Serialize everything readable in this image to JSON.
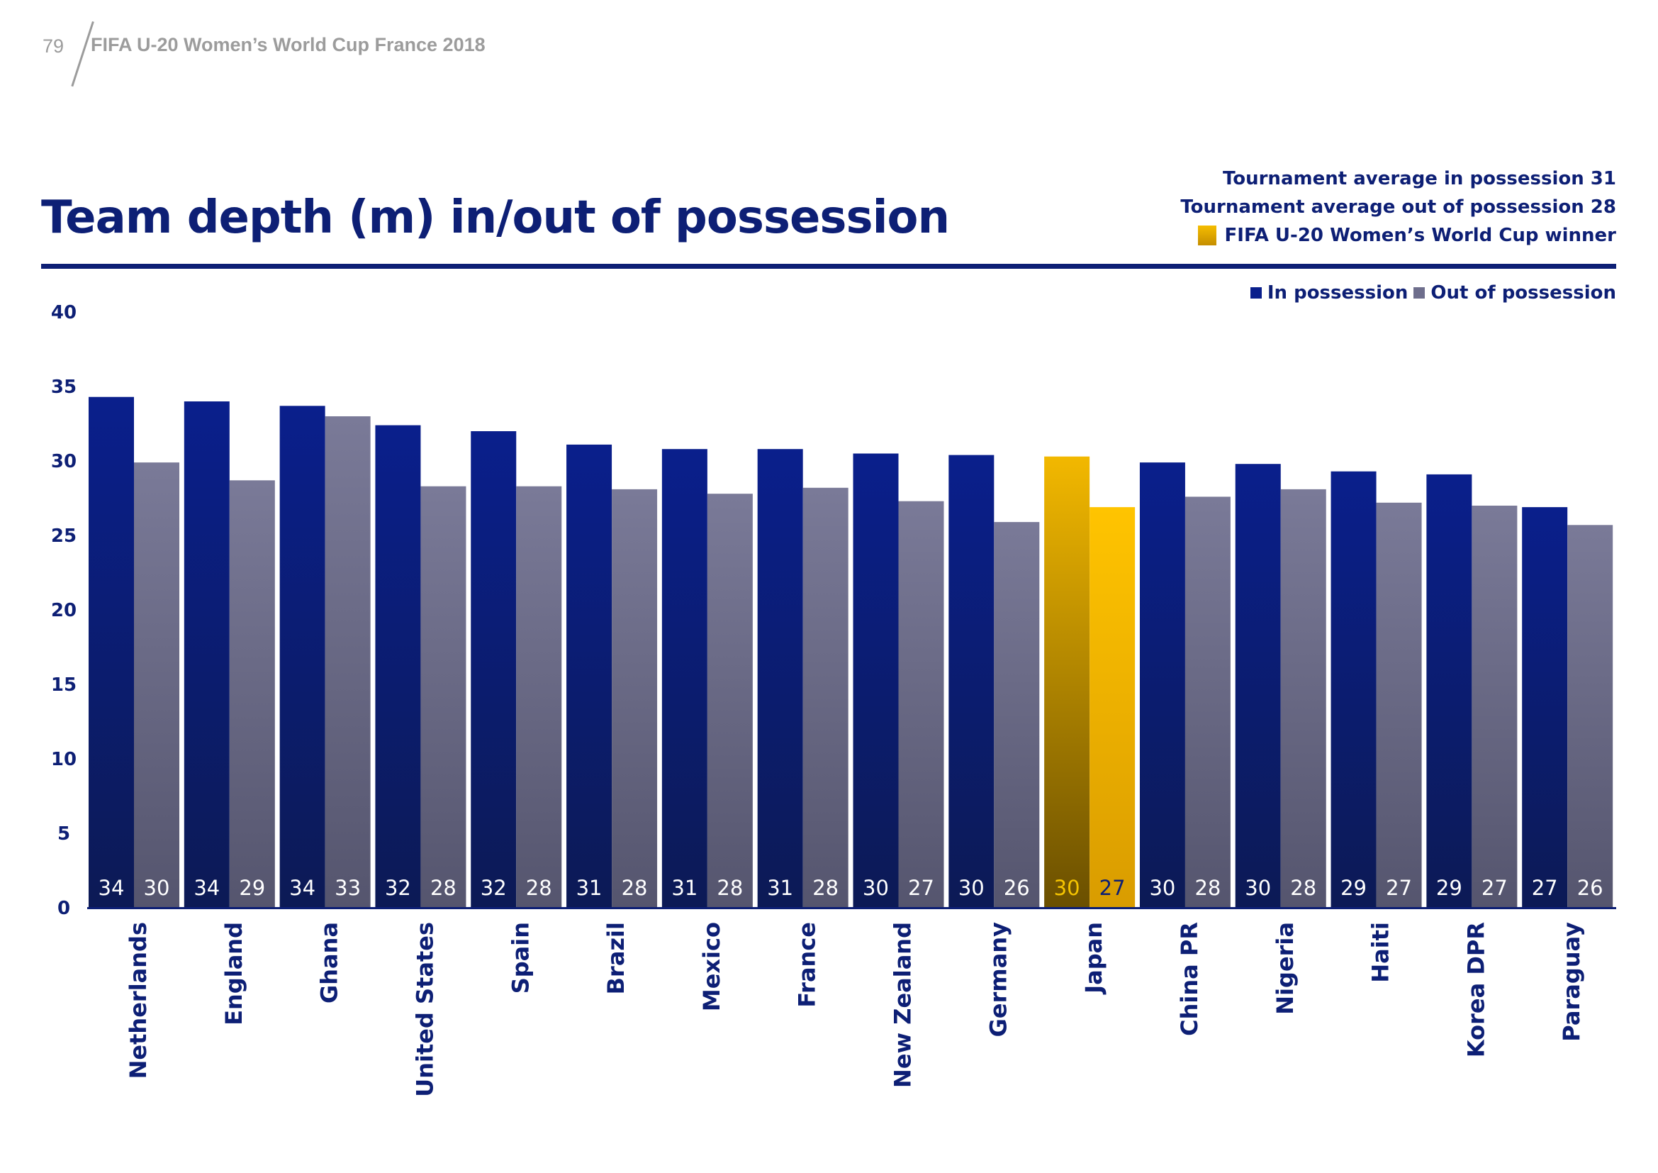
{
  "header": {
    "page_number": "79",
    "publication": "FIFA U-20 Women’s World Cup France 2018"
  },
  "title": "Team depth (m) in/out of possession",
  "averages": {
    "in_possession": "Tournament average in possession 31",
    "out_of_possession": "Tournament average out of possession 28",
    "winner_label": "FIFA U-20 Women’s World Cup winner"
  },
  "legend": {
    "in_label": "In possession",
    "out_label": "Out of possession"
  },
  "colors": {
    "title": "#0d1f75",
    "in_top": "#0a1f8c",
    "in_bottom": "#0c1a55",
    "out_top": "#7a7a98",
    "out_bottom": "#55556e",
    "winner_top": "#f2b800",
    "winner_bottom": "#6a4f00",
    "winner_out_top": "#ffc400",
    "winner_out_bottom": "#d99c00"
  },
  "chart_data": {
    "type": "bar",
    "title": "Team depth (m) in/out of possession",
    "xlabel": "",
    "ylabel": "",
    "ylim": [
      0,
      40
    ],
    "yticks": [
      0,
      5,
      10,
      15,
      20,
      25,
      30,
      35,
      40
    ],
    "categories": [
      "Netherlands",
      "England",
      "Ghana",
      "United States",
      "Spain",
      "Brazil",
      "Mexico",
      "France",
      "New Zealand",
      "Germany",
      "Japan",
      "China PR",
      "Nigeria",
      "Haiti",
      "Korea DPR",
      "Paraguay"
    ],
    "series": [
      {
        "name": "In possession",
        "values": [
          34.3,
          34.0,
          33.7,
          32.4,
          32.0,
          31.1,
          30.8,
          30.8,
          30.5,
          30.4,
          30.3,
          29.9,
          29.8,
          29.3,
          29.1,
          26.9
        ],
        "labels": [
          "34",
          "34",
          "34",
          "32",
          "32",
          "31",
          "31",
          "31",
          "30",
          "30",
          "30",
          "30",
          "30",
          "29",
          "29",
          "27"
        ]
      },
      {
        "name": "Out of possession",
        "values": [
          29.9,
          28.7,
          33.0,
          28.3,
          28.3,
          28.1,
          27.8,
          28.2,
          27.3,
          25.9,
          26.9,
          27.6,
          28.1,
          27.2,
          27.0,
          25.7
        ],
        "labels": [
          "30",
          "29",
          "33",
          "28",
          "28",
          "28",
          "28",
          "28",
          "27",
          "26",
          "27",
          "28",
          "28",
          "27",
          "27",
          "26"
        ]
      }
    ],
    "highlight": "Japan"
  }
}
